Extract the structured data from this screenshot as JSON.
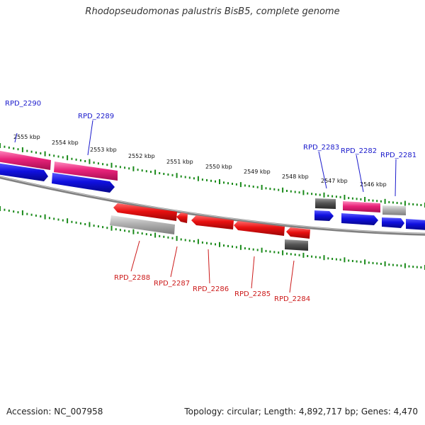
{
  "title": "Rhodopseudomonas palustris BisB5, complete genome",
  "footer": {
    "accession": "Accession: NC_007958",
    "summary": "Topology: circular; Length: 4,892,717 bp; Genes: 4,470"
  },
  "colors": {
    "backbone": "#808080",
    "ticks": "#1a8a1a",
    "forward_label": "#1a1acc",
    "reverse_label": "#cc1a1a",
    "gene_pink": "#e8237a",
    "gene_blue": "#1010e0",
    "gene_red": "#e81010",
    "gene_dark_gray": "#555555",
    "gene_light_gray": "#b0b0b0"
  },
  "ruler": [
    "2555 kbp",
    "2554 kbp",
    "2553 kbp",
    "2552 kbp",
    "2551 kbp",
    "2550 kbp",
    "2549 kbp",
    "2548 kbp",
    "2547 kbp",
    "2546 kbp"
  ],
  "forward_labels": [
    "RPD_2290",
    "RPD_2289",
    "RPD_2283",
    "RPD_2282",
    "RPD_2281"
  ],
  "reverse_labels": [
    "RPD_2288",
    "RPD_2287",
    "RPD_2286",
    "RPD_2285",
    "RPD_2284"
  ]
}
